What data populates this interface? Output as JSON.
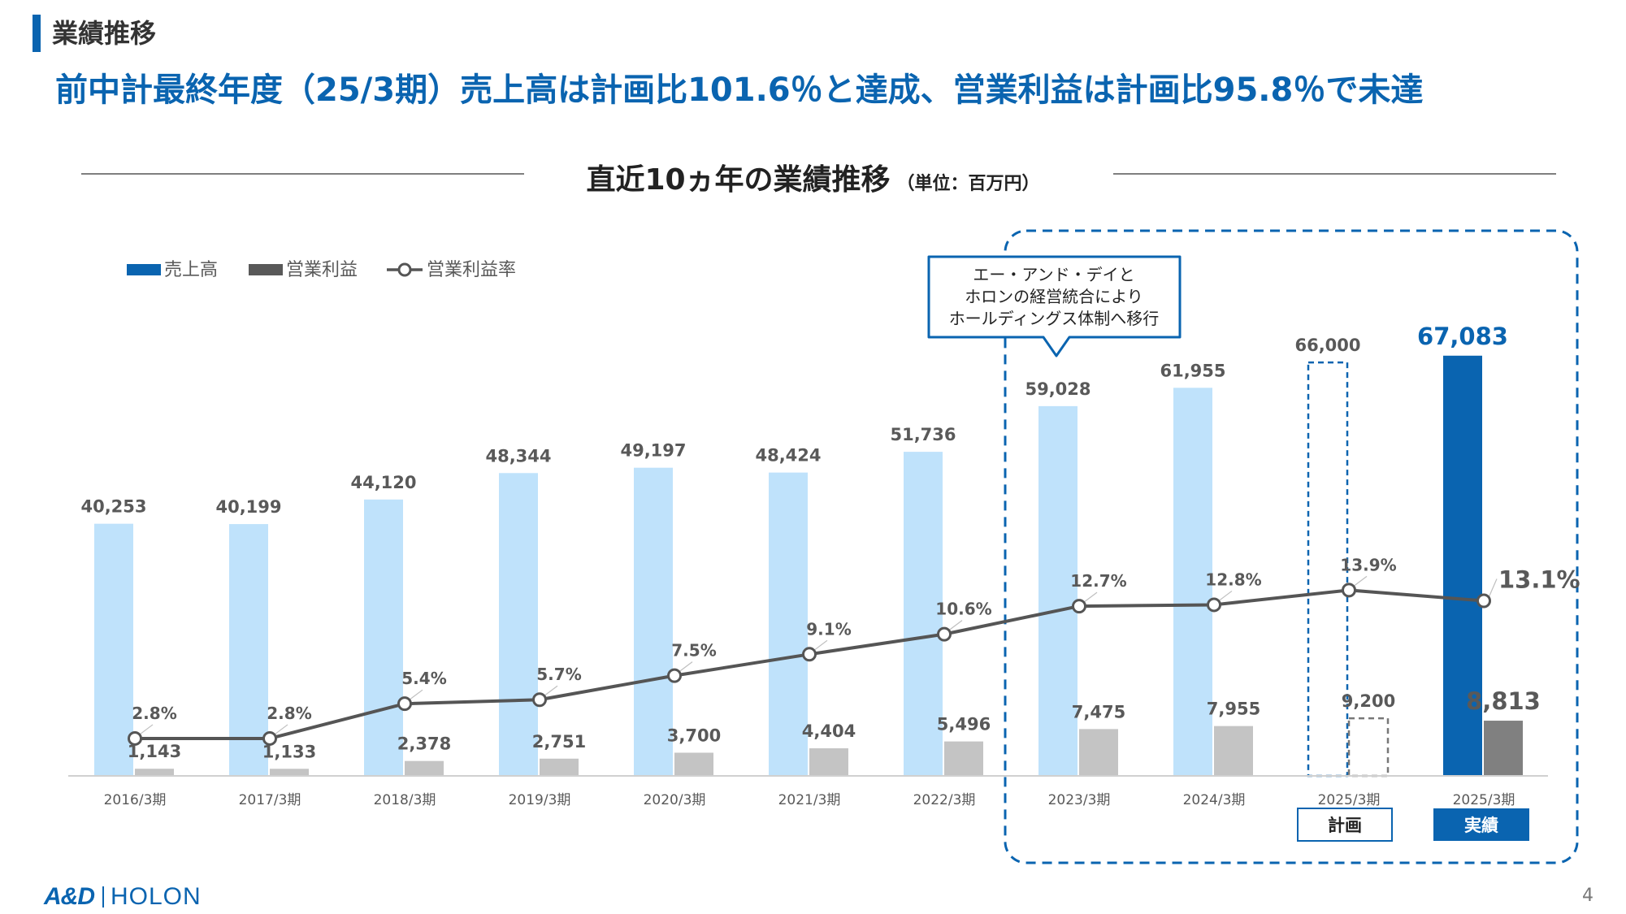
{
  "header": {
    "section": "業績推移",
    "headline": "前中計最終年度（25/3期）売上高は計画比101.6％と達成、営業利益は計画比95.8％で未達"
  },
  "chart_title": "直近10ヵ年の業績推移",
  "chart_unit": "（単位：百万円）",
  "callout": {
    "lines": [
      "エー・アンド・デイと",
      "ホロンの経営統合により",
      "ホールディングス体制へ移行"
    ]
  },
  "tags": {
    "plan": "計画",
    "actual": "実績"
  },
  "logo": {
    "and": "A&D",
    "holon": "HOLON"
  },
  "page_number": "4",
  "colors": {
    "sales": "#bfe2fb",
    "sales_actual": "#0a64b0",
    "op_profit": "#c4c4c4",
    "op_profit_actual": "#808080",
    "margin_line": "#555555",
    "highlight": "#0a64b0"
  },
  "chart_data": {
    "type": "bar",
    "categories": [
      "2016/3期",
      "2017/3期",
      "2018/3期",
      "2019/3期",
      "2020/3期",
      "2021/3期",
      "2022/3期",
      "2023/3期",
      "2024/3期",
      "2025/3期",
      "2025/3期"
    ],
    "series": [
      {
        "name": "売上高",
        "type": "bar",
        "values": [
          40253,
          40199,
          44120,
          48344,
          49197,
          48424,
          51736,
          59028,
          61955,
          66000,
          67083
        ]
      },
      {
        "name": "営業利益",
        "type": "bar",
        "values": [
          1143,
          1133,
          2378,
          2751,
          3700,
          4404,
          5496,
          7475,
          7955,
          9200,
          8813
        ]
      },
      {
        "name": "営業利益率",
        "type": "line",
        "unit": "%",
        "values": [
          2.8,
          2.8,
          5.4,
          5.7,
          7.5,
          9.1,
          10.6,
          12.7,
          12.8,
          13.9,
          13.1
        ]
      }
    ],
    "sales_labels": [
      "40,253",
      "40,199",
      "44,120",
      "48,344",
      "49,197",
      "48,424",
      "51,736",
      "59,028",
      "61,955",
      "66,000",
      "67,083"
    ],
    "profit_labels": [
      "1,143",
      "1,133",
      "2,378",
      "2,751",
      "3,700",
      "4,404",
      "5,496",
      "7,475",
      "7,955",
      "9,200",
      "8,813"
    ],
    "margin_labels": [
      "2.8%",
      "2.8%",
      "5.4%",
      "5.7%",
      "7.5%",
      "9.1%",
      "10.6%",
      "12.7%",
      "12.8%",
      "13.9%",
      "13.1%"
    ],
    "plan_index": 9,
    "actual_index": 10,
    "legend_position": "top-left",
    "ylim_bar": [
      0,
      70000
    ],
    "ylim_margin": [
      0,
      19
    ],
    "grid": false
  }
}
